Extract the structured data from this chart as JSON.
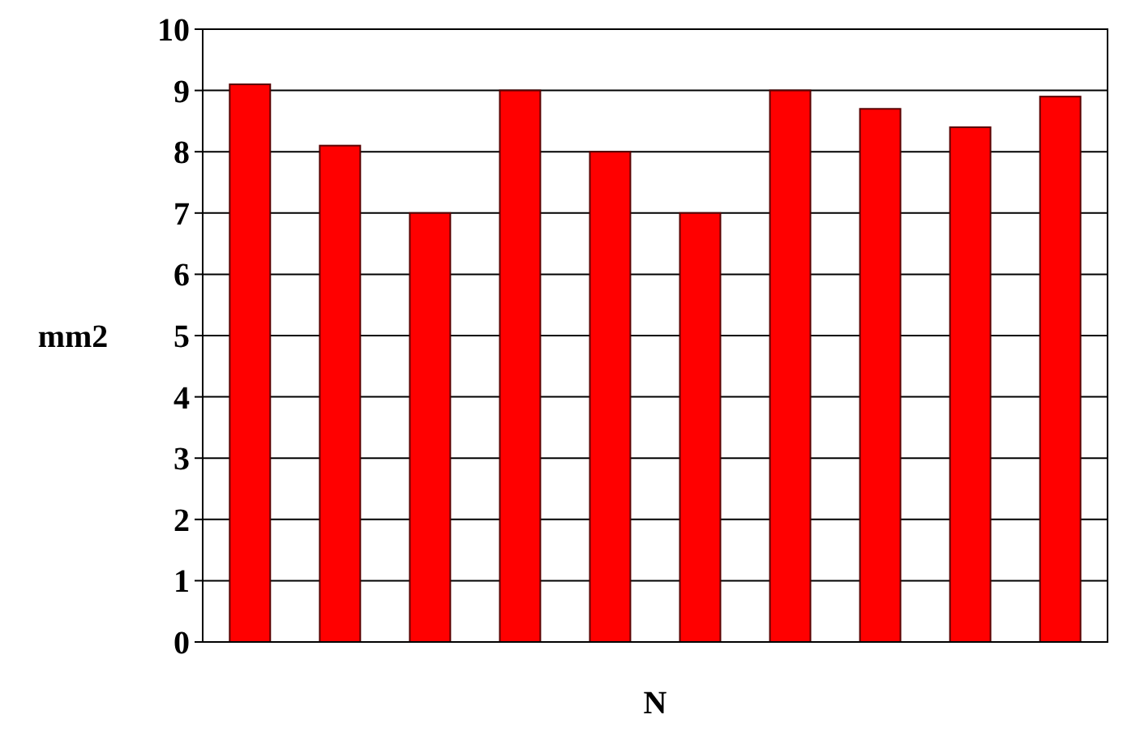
{
  "chart_data": {
    "type": "bar",
    "xlabel": "N",
    "ylabel": "mm2",
    "categories": [
      null,
      null,
      null,
      null,
      null,
      null,
      null,
      null,
      null,
      null
    ],
    "values": [
      9.1,
      8.1,
      7.0,
      9.0,
      8.0,
      7.0,
      9.0,
      8.7,
      8.4,
      8.9
    ],
    "color": "#ff0000",
    "ylim": [
      0,
      10
    ],
    "yticks": [
      0,
      1,
      2,
      3,
      4,
      5,
      6,
      7,
      8,
      9,
      10
    ],
    "grid": "y"
  }
}
